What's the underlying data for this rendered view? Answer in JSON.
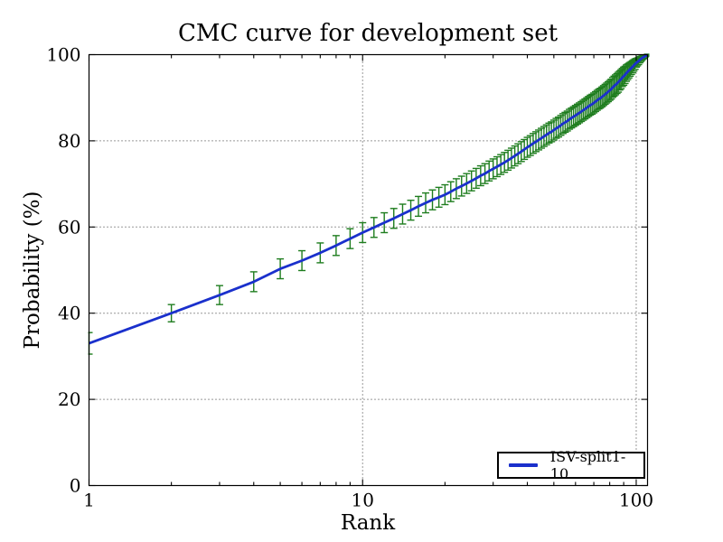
{
  "figure": {
    "title": "CMC curve for development set",
    "xlabel": "Rank",
    "ylabel": "Probability (%)"
  },
  "legend": {
    "label": "ISV-split1-10",
    "position": "lower right"
  },
  "colors": {
    "curve": "#1a30cc",
    "errorbar": "#1e7d1e",
    "axes": "#000000",
    "grid": "#333333",
    "background": "#ffffff"
  },
  "chart_data": {
    "type": "line",
    "title": "CMC curve for development set",
    "xlabel": "Rank",
    "ylabel": "Probability (%)",
    "xscale": "log",
    "xlim": [
      1,
      110
    ],
    "ylim": [
      0,
      100
    ],
    "xticks": [
      1,
      10,
      100
    ],
    "xtick_labels": [
      "1",
      "10",
      "100"
    ],
    "xminorticks": [
      2,
      3,
      4,
      5,
      6,
      7,
      8,
      9,
      20,
      30,
      40,
      50,
      60,
      70,
      80,
      90
    ],
    "yticks": [
      0,
      20,
      40,
      60,
      80,
      100
    ],
    "ytick_labels": [
      "0",
      "20",
      "40",
      "60",
      "80",
      "100"
    ],
    "grid": "dotted",
    "legend_position": "lower right",
    "series": [
      {
        "name": "ISV-split1-10",
        "color": "#1a30cc",
        "errorbar_color": "#1e7d1e",
        "points": [
          [
            1,
            33.0,
            2.5
          ],
          [
            2,
            40.0,
            2.0
          ],
          [
            3,
            44.2,
            2.2
          ],
          [
            4,
            47.3,
            2.3
          ],
          [
            5,
            50.3,
            2.3
          ],
          [
            6,
            52.2,
            2.3
          ],
          [
            7,
            54.0,
            2.3
          ],
          [
            8,
            55.7,
            2.3
          ],
          [
            9,
            57.3,
            2.3
          ],
          [
            10,
            58.7,
            2.3
          ],
          [
            11,
            59.9,
            2.3
          ],
          [
            12,
            61.0,
            2.3
          ],
          [
            13,
            62.0,
            2.3
          ],
          [
            14,
            63.0,
            2.3
          ],
          [
            15,
            63.9,
            2.3
          ],
          [
            16,
            64.8,
            2.3
          ],
          [
            17,
            65.6,
            2.3
          ],
          [
            18,
            66.3,
            2.3
          ],
          [
            19,
            66.9,
            2.3
          ],
          [
            20,
            67.5,
            2.3
          ],
          [
            21,
            68.2,
            2.3
          ],
          [
            22,
            68.9,
            2.3
          ],
          [
            23,
            69.5,
            2.3
          ],
          [
            24,
            70.1,
            2.3
          ],
          [
            25,
            70.7,
            2.3
          ],
          [
            26,
            71.3,
            2.3
          ],
          [
            27,
            71.9,
            2.3
          ],
          [
            28,
            72.4,
            2.3
          ],
          [
            29,
            73.0,
            2.3
          ],
          [
            30,
            73.5,
            2.3
          ],
          [
            31,
            74.0,
            2.3
          ],
          [
            32,
            74.5,
            2.3
          ],
          [
            33,
            75.0,
            2.3
          ],
          [
            34,
            75.5,
            2.3
          ],
          [
            35,
            76.0,
            2.3
          ],
          [
            36,
            76.5,
            2.3
          ],
          [
            37,
            77.0,
            2.3
          ],
          [
            38,
            77.5,
            2.3
          ],
          [
            39,
            78.0,
            2.3
          ],
          [
            40,
            78.5,
            2.3
          ],
          [
            41,
            78.9,
            2.3
          ],
          [
            42,
            79.4,
            2.3
          ],
          [
            43,
            79.8,
            2.3
          ],
          [
            44,
            80.2,
            2.3
          ],
          [
            45,
            80.6,
            2.3
          ],
          [
            46,
            81.0,
            2.3
          ],
          [
            47,
            81.4,
            2.3
          ],
          [
            48,
            81.8,
            2.3
          ],
          [
            49,
            82.1,
            2.3
          ],
          [
            50,
            82.5,
            2.3
          ],
          [
            51,
            82.9,
            2.3
          ],
          [
            52,
            83.2,
            2.3
          ],
          [
            53,
            83.6,
            2.3
          ],
          [
            54,
            84.0,
            2.3
          ],
          [
            55,
            84.3,
            2.3
          ],
          [
            56,
            84.6,
            2.3
          ],
          [
            57,
            85.0,
            2.3
          ],
          [
            58,
            85.3,
            2.3
          ],
          [
            59,
            85.6,
            2.3
          ],
          [
            60,
            85.9,
            2.3
          ],
          [
            61,
            86.2,
            2.3
          ],
          [
            62,
            86.5,
            2.3
          ],
          [
            63,
            86.8,
            2.3
          ],
          [
            64,
            87.1,
            2.3
          ],
          [
            65,
            87.4,
            2.3
          ],
          [
            66,
            87.7,
            2.3
          ],
          [
            67,
            88.0,
            2.3
          ],
          [
            68,
            88.3,
            2.3
          ],
          [
            69,
            88.5,
            2.3
          ],
          [
            70,
            88.8,
            2.3
          ],
          [
            71,
            89.1,
            2.3
          ],
          [
            72,
            89.4,
            2.3
          ],
          [
            73,
            89.7,
            2.3
          ],
          [
            74,
            89.9,
            2.3
          ],
          [
            75,
            90.2,
            2.3
          ],
          [
            76,
            90.5,
            2.3
          ],
          [
            77,
            90.8,
            2.3
          ],
          [
            78,
            91.1,
            2.3
          ],
          [
            79,
            91.4,
            2.3
          ],
          [
            80,
            91.7,
            2.3
          ],
          [
            81,
            92.0,
            2.3
          ],
          [
            82,
            92.4,
            2.3
          ],
          [
            83,
            92.7,
            2.3
          ],
          [
            84,
            93.0,
            2.3
          ],
          [
            85,
            93.3,
            2.3
          ],
          [
            86,
            93.6,
            2.3
          ],
          [
            87,
            94.0,
            2.2
          ],
          [
            88,
            94.3,
            2.2
          ],
          [
            89,
            94.7,
            2.1
          ],
          [
            90,
            95.0,
            2.1
          ],
          [
            91,
            95.3,
            2.0
          ],
          [
            92,
            95.7,
            1.9
          ],
          [
            93,
            96.0,
            1.8
          ],
          [
            94,
            96.3,
            1.7
          ],
          [
            95,
            96.6,
            1.6
          ],
          [
            96,
            96.9,
            1.5
          ],
          [
            97,
            97.2,
            1.4
          ],
          [
            98,
            97.5,
            1.3
          ],
          [
            99,
            97.8,
            1.2
          ],
          [
            100,
            98.1,
            1.0
          ],
          [
            101,
            98.3,
            0.9
          ],
          [
            102,
            98.5,
            0.8
          ],
          [
            103,
            98.8,
            0.7
          ],
          [
            104,
            99.0,
            0.6
          ],
          [
            105,
            99.2,
            0.5
          ],
          [
            106,
            99.4,
            0.4
          ],
          [
            107,
            99.5,
            0.3
          ],
          [
            108,
            99.7,
            0.2
          ],
          [
            109,
            99.8,
            0.15
          ],
          [
            110,
            100.0,
            0.1
          ]
        ]
      }
    ]
  }
}
